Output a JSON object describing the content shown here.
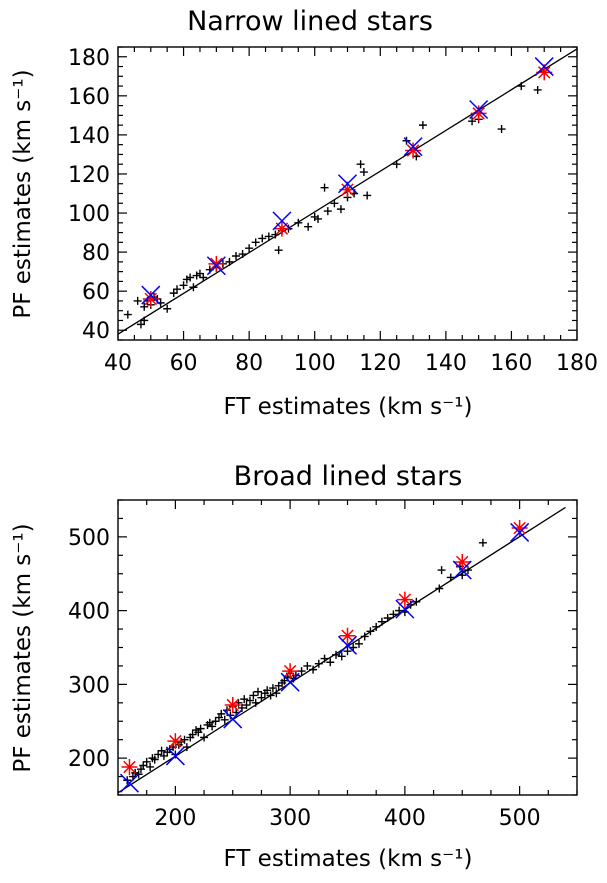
{
  "colors": {
    "axis": "#000000",
    "fit_line": "#000000",
    "points": "#000000",
    "red_markers": "#ff0000",
    "blue_markers": "#0000ff"
  },
  "chart_data": [
    {
      "type": "scatter",
      "title": "Narrow lined stars",
      "xlabel": "FT estimates (km s⁻¹)",
      "ylabel": "PF estimates (km s⁻¹)",
      "xlim": [
        40,
        180
      ],
      "ylim": [
        35,
        185
      ],
      "x_ticks": [
        "40",
        "60",
        "80",
        "100",
        "120",
        "140",
        "160",
        "180"
      ],
      "y_ticks": [
        "40",
        "60",
        "80",
        "100",
        "120",
        "140",
        "160",
        "180"
      ],
      "grid": false,
      "line": [
        [
          40,
          38
        ],
        [
          180,
          184
        ]
      ],
      "series": [
        {
          "marker": "plus",
          "color": "#000000",
          "x": [
            43,
            46,
            47,
            48,
            48,
            49,
            50,
            51,
            52,
            53,
            55,
            57,
            58,
            60,
            61,
            62,
            63,
            64,
            65,
            66,
            68,
            70,
            72,
            74,
            76,
            78,
            80,
            82,
            84,
            86,
            88,
            89,
            90,
            92,
            95,
            98,
            100,
            101,
            103,
            104,
            106,
            108,
            110,
            112,
            114,
            115,
            116,
            125,
            128,
            131,
            133,
            148,
            150,
            157,
            163,
            168
          ],
          "y": [
            48,
            55,
            43,
            52,
            45,
            55,
            53,
            57,
            56,
            54,
            51,
            59,
            61,
            63,
            66,
            67,
            62,
            68,
            69,
            67,
            71,
            72,
            74,
            75,
            78,
            79,
            82,
            85,
            87,
            88,
            89,
            81,
            91,
            92,
            95,
            93,
            98,
            97,
            113,
            101,
            105,
            102,
            108,
            110,
            125,
            121,
            109,
            125,
            137,
            129,
            145,
            147,
            148,
            143,
            165,
            163
          ]
        },
        {
          "marker": "asterisk",
          "color": "#ff0000",
          "x": [
            50,
            70,
            90,
            110,
            130,
            150,
            170
          ],
          "y": [
            56,
            74,
            92,
            112,
            132,
            151,
            172
          ]
        },
        {
          "marker": "x",
          "color": "#0000ff",
          "x": [
            50,
            70,
            90,
            110,
            130,
            150,
            170
          ],
          "y": [
            58,
            73,
            96,
            115,
            134,
            153,
            175
          ]
        }
      ]
    },
    {
      "type": "scatter",
      "title": "Broad lined stars",
      "xlabel": "FT estimates (km s⁻¹)",
      "ylabel": "PF estimates (km s⁻¹)",
      "xlim": [
        150,
        550
      ],
      "ylim": [
        150,
        550
      ],
      "x_ticks": [
        "200",
        "300",
        "400",
        "500"
      ],
      "y_ticks": [
        "200",
        "300",
        "400",
        "500"
      ],
      "grid": false,
      "line": [
        [
          150,
          153
        ],
        [
          540,
          540
        ]
      ],
      "series": [
        {
          "marker": "plus",
          "color": "#000000",
          "x": [
            158,
            163,
            165,
            168,
            170,
            172,
            175,
            178,
            180,
            182,
            185,
            188,
            190,
            193,
            195,
            198,
            200,
            203,
            205,
            208,
            210,
            213,
            215,
            218,
            220,
            222,
            225,
            228,
            230,
            232,
            235,
            238,
            240,
            243,
            245,
            248,
            250,
            253,
            255,
            258,
            260,
            262,
            265,
            268,
            270,
            272,
            275,
            278,
            280,
            283,
            285,
            288,
            290,
            293,
            295,
            298,
            300,
            303,
            305,
            310,
            315,
            320,
            325,
            330,
            335,
            340,
            345,
            350,
            355,
            360,
            365,
            370,
            375,
            380,
            385,
            390,
            395,
            400,
            405,
            410,
            430,
            432,
            440,
            448,
            450,
            455,
            468
          ],
          "y": [
            170,
            175,
            180,
            178,
            185,
            190,
            195,
            188,
            200,
            198,
            205,
            210,
            203,
            208,
            212,
            215,
            205,
            218,
            222,
            225,
            215,
            228,
            232,
            238,
            235,
            240,
            228,
            245,
            248,
            243,
            250,
            255,
            260,
            252,
            265,
            258,
            270,
            262,
            275,
            268,
            280,
            272,
            278,
            285,
            275,
            290,
            282,
            288,
            292,
            285,
            295,
            288,
            298,
            302,
            305,
            310,
            315,
            308,
            312,
            318,
            325,
            320,
            328,
            335,
            330,
            340,
            338,
            345,
            350,
            355,
            365,
            372,
            378,
            385,
            390,
            395,
            400,
            398,
            408,
            412,
            430,
            455,
            445,
            460,
            448,
            455,
            492
          ]
        },
        {
          "marker": "asterisk",
          "color": "#ff0000",
          "x": [
            160,
            200,
            250,
            300,
            350,
            400,
            450,
            500
          ],
          "y": [
            188,
            223,
            272,
            318,
            366,
            415,
            466,
            512
          ]
        },
        {
          "marker": "x",
          "color": "#0000ff",
          "x": [
            160,
            200,
            250,
            300,
            350,
            400,
            450,
            500
          ],
          "y": [
            166,
            203,
            253,
            303,
            353,
            402,
            455,
            506
          ]
        }
      ]
    }
  ]
}
